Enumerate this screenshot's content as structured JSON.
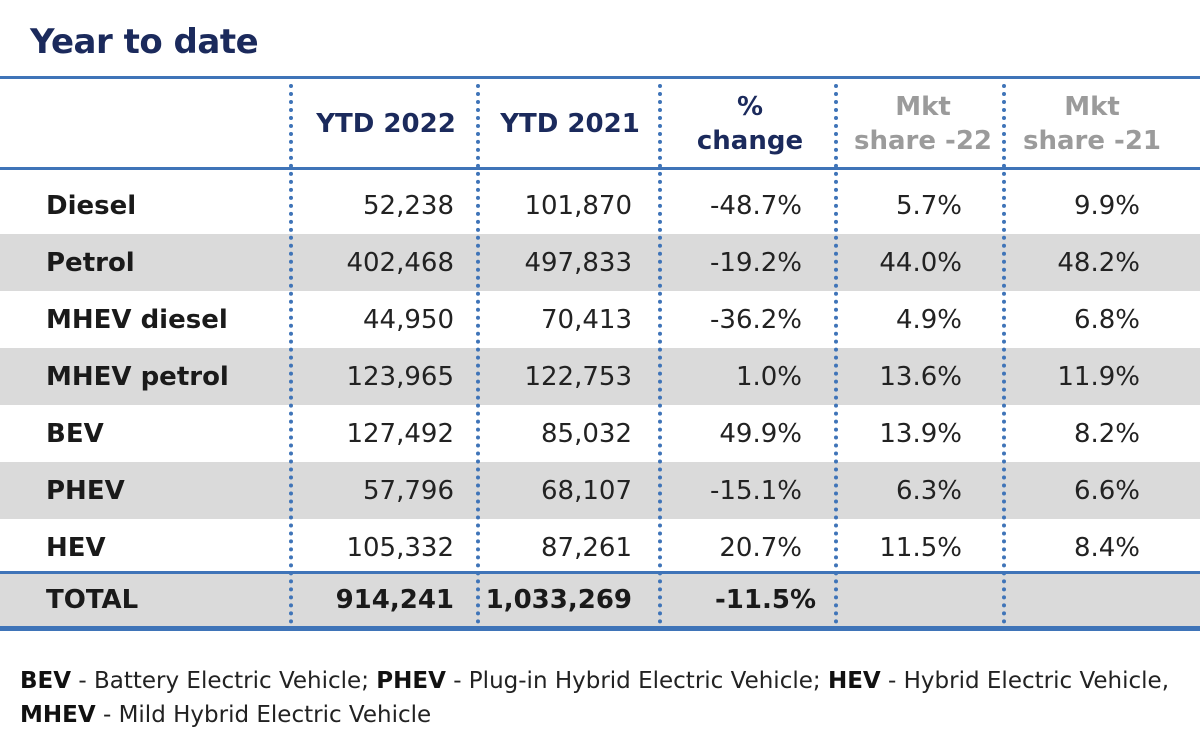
{
  "title": "Year to date",
  "headers": [
    {
      "line1": "YTD 2022",
      "line2": ""
    },
    {
      "line1": "YTD 2021",
      "line2": ""
    },
    {
      "line1": "%",
      "line2": "change"
    },
    {
      "line1": "Mkt",
      "line2": "share -22"
    },
    {
      "line1": "Mkt",
      "line2": "share -21"
    }
  ],
  "rows": [
    {
      "label": "Diesel",
      "ytd2022": "52,238",
      "ytd2021": "101,870",
      "change": "-48.7%",
      "share22": "5.7%",
      "share21": "9.9%"
    },
    {
      "label": "Petrol",
      "ytd2022": "402,468",
      "ytd2021": "497,833",
      "change": "-19.2%",
      "share22": "44.0%",
      "share21": "48.2%"
    },
    {
      "label": "MHEV diesel",
      "ytd2022": "44,950",
      "ytd2021": "70,413",
      "change": "-36.2%",
      "share22": "4.9%",
      "share21": "6.8%"
    },
    {
      "label": "MHEV petrol",
      "ytd2022": "123,965",
      "ytd2021": "122,753",
      "change": "1.0%",
      "share22": "13.6%",
      "share21": "11.9%"
    },
    {
      "label": "BEV",
      "ytd2022": "127,492",
      "ytd2021": "85,032",
      "change": "49.9%",
      "share22": "13.9%",
      "share21": "8.2%"
    },
    {
      "label": "PHEV",
      "ytd2022": "57,796",
      "ytd2021": "68,107",
      "change": "-15.1%",
      "share22": "6.3%",
      "share21": "6.6%"
    },
    {
      "label": "HEV",
      "ytd2022": "105,332",
      "ytd2021": "87,261",
      "change": "20.7%",
      "share22": "11.5%",
      "share21": "8.4%"
    }
  ],
  "total": {
    "label": "TOTAL",
    "ytd2022": "914,241",
    "ytd2021": "1,033,269",
    "change": "-11.5%"
  },
  "legend": {
    "bev_abbr": "BEV",
    "bev_text": " - Battery Electric Vehicle; ",
    "phev_abbr": "PHEV",
    "phev_text": " - Plug-in Hybrid Electric Vehicle; ",
    "hev_abbr": "HEV",
    "hev_text": " - Hybrid Electric Vehicle,",
    "mhev_abbr": "MHEV",
    "mhev_text": " - Mild Hybrid Electric Vehicle"
  },
  "colors": {
    "accent": "#3f74b8",
    "title": "#1b2a5c",
    "shade": "#dadada",
    "muted_header": "#9b9b9b"
  },
  "chart_data": {
    "type": "table",
    "title": "Year to date",
    "columns": [
      "YTD 2022",
      "YTD 2021",
      "% change",
      "Mkt share -22",
      "Mkt share -21"
    ],
    "categories": [
      "Diesel",
      "Petrol",
      "MHEV diesel",
      "MHEV petrol",
      "BEV",
      "PHEV",
      "HEV",
      "TOTAL"
    ],
    "series": [
      {
        "name": "YTD 2022",
        "values": [
          52238,
          402468,
          44950,
          123965,
          127492,
          57796,
          105332,
          914241
        ]
      },
      {
        "name": "YTD 2021",
        "values": [
          101870,
          497833,
          70413,
          122753,
          85032,
          68107,
          87261,
          1033269
        ]
      },
      {
        "name": "% change",
        "values": [
          -48.7,
          -19.2,
          -36.2,
          1.0,
          49.9,
          -15.1,
          20.7,
          -11.5
        ]
      },
      {
        "name": "Mkt share -22",
        "values": [
          5.7,
          44.0,
          4.9,
          13.6,
          13.9,
          6.3,
          11.5,
          null
        ]
      },
      {
        "name": "Mkt share -21",
        "values": [
          9.9,
          48.2,
          6.8,
          11.9,
          8.2,
          6.6,
          8.4,
          null
        ]
      }
    ]
  }
}
